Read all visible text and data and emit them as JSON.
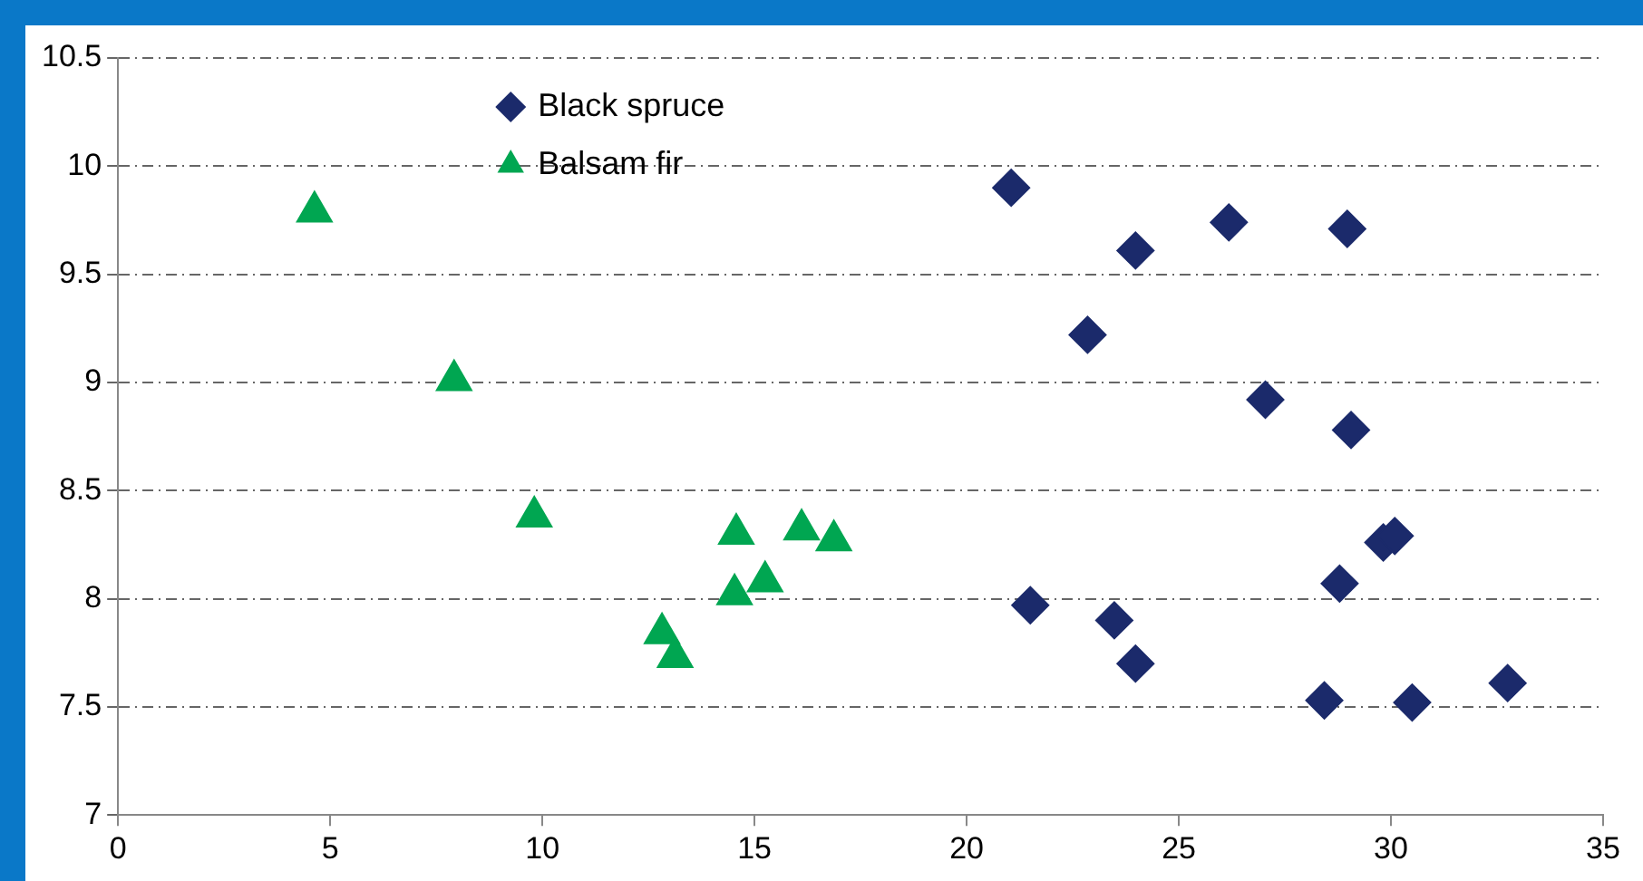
{
  "chart_data": {
    "type": "scatter",
    "xlim": [
      0,
      35
    ],
    "xticks": [
      0,
      5,
      10,
      15,
      20,
      25,
      30,
      35
    ],
    "ylim": [
      7,
      10.5
    ],
    "yticks": [
      7,
      7.5,
      8,
      8.5,
      9,
      9.5,
      10,
      10.5
    ],
    "grid": "y",
    "legend": "top left",
    "series": [
      {
        "name": "Black spruce",
        "color": "#1b2a6b",
        "marker": "diamond",
        "x": [
          21.05,
          23.98,
          22.85,
          26.18,
          28.97,
          27.04,
          29.06,
          29.82,
          30.09,
          28.79,
          21.5,
          23.48,
          23.98,
          28.43,
          30.5,
          32.75
        ],
        "values": [
          9.9,
          9.61,
          9.22,
          9.74,
          9.71,
          8.92,
          8.78,
          8.26,
          8.29,
          8.07,
          7.97,
          7.9,
          7.7,
          7.53,
          7.52,
          7.61
        ]
      },
      {
        "name": "Balsam fir",
        "color": "#00a651",
        "marker": "triangle",
        "x": [
          4.63,
          7.92,
          9.81,
          14.57,
          16.11,
          16.87,
          14.53,
          15.25,
          12.82,
          13.13
        ],
        "values": [
          9.79,
          9.01,
          8.38,
          8.3,
          8.32,
          8.27,
          8.02,
          8.08,
          7.84,
          7.73
        ]
      }
    ]
  }
}
